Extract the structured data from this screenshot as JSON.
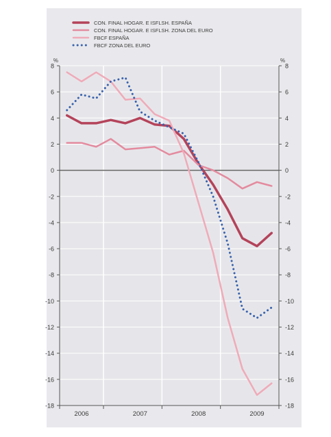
{
  "chart_data": {
    "type": "line",
    "title": "",
    "xlabel": "",
    "ylabel": "",
    "y_unit_left": "%",
    "y_unit_right": "%",
    "ylim": [
      -18,
      8
    ],
    "yticks": [
      8,
      6,
      4,
      2,
      0,
      -2,
      -4,
      -6,
      -8,
      -10,
      -12,
      -14,
      -16,
      -18
    ],
    "xlim": [
      2005.75,
      2009.5
    ],
    "x_tick_labels": [
      {
        "label": "2006",
        "x": 2006.125
      },
      {
        "label": "2007",
        "x": 2007.125
      },
      {
        "label": "2008",
        "x": 2008.125
      },
      {
        "label": "2009",
        "x": 2009.125
      }
    ],
    "year_boundaries": [
      2006.5,
      2007.5,
      2008.5
    ],
    "grid": true,
    "legend_position": "top",
    "colors": {
      "background": "#e9e9ed",
      "plot_area": "#e6e6ea",
      "grid": "#ffffff",
      "zero_line": "#666666",
      "axis": "#555555"
    },
    "series": [
      {
        "name": "CON. FINAL HOGAR. E ISFLSH. ESPAÑA",
        "color": "#b4435a",
        "style": "solid",
        "width": 3.5,
        "x": [
          2005.875,
          2006.125,
          2006.375,
          2006.625,
          2006.875,
          2007.125,
          2007.375,
          2007.625,
          2007.875,
          2008.125,
          2008.375,
          2008.625,
          2008.875,
          2009.125,
          2009.375
        ],
        "y": [
          4.2,
          3.6,
          3.6,
          3.85,
          3.6,
          4.0,
          3.5,
          3.4,
          2.4,
          0.5,
          -1.1,
          -3.0,
          -5.2,
          -5.8,
          -4.8
        ]
      },
      {
        "name": "CON. FINAL HOGAR. E ISFLSH. ZONA DEL EURO",
        "color": "#e48a9e",
        "style": "solid",
        "width": 2.5,
        "x": [
          2005.875,
          2006.125,
          2006.375,
          2006.625,
          2006.875,
          2007.125,
          2007.375,
          2007.625,
          2007.875,
          2008.125,
          2008.375,
          2008.625,
          2008.875,
          2009.125,
          2009.375
        ],
        "y": [
          2.1,
          2.1,
          1.8,
          2.4,
          1.6,
          1.7,
          1.8,
          1.2,
          1.5,
          0.4,
          0.0,
          -0.6,
          -1.4,
          -0.9,
          -1.2
        ]
      },
      {
        "name": "FBCF ESPAÑA",
        "color": "#f0aab8",
        "style": "solid",
        "width": 2.5,
        "x": [
          2005.875,
          2006.125,
          2006.375,
          2006.625,
          2006.875,
          2007.125,
          2007.375,
          2007.625,
          2007.875,
          2008.125,
          2008.375,
          2008.625,
          2008.875,
          2009.125,
          2009.375
        ],
        "y": [
          7.5,
          6.8,
          7.5,
          6.8,
          5.4,
          5.5,
          4.3,
          3.8,
          1.3,
          -2.5,
          -6.3,
          -11.3,
          -15.2,
          -17.2,
          -16.3
        ]
      },
      {
        "name": "FBCF ZONA DEL EURO",
        "color": "#3a62ad",
        "style": "dotted",
        "width": 3,
        "x": [
          2005.875,
          2006.125,
          2006.375,
          2006.625,
          2006.875,
          2007.125,
          2007.375,
          2007.625,
          2007.875,
          2008.125,
          2008.375,
          2008.625,
          2008.875,
          2009.125,
          2009.375
        ],
        "y": [
          4.6,
          5.8,
          5.5,
          6.8,
          7.1,
          4.5,
          3.8,
          3.3,
          2.8,
          0.6,
          -2.0,
          -5.6,
          -10.6,
          -11.3,
          -10.5
        ]
      }
    ]
  }
}
